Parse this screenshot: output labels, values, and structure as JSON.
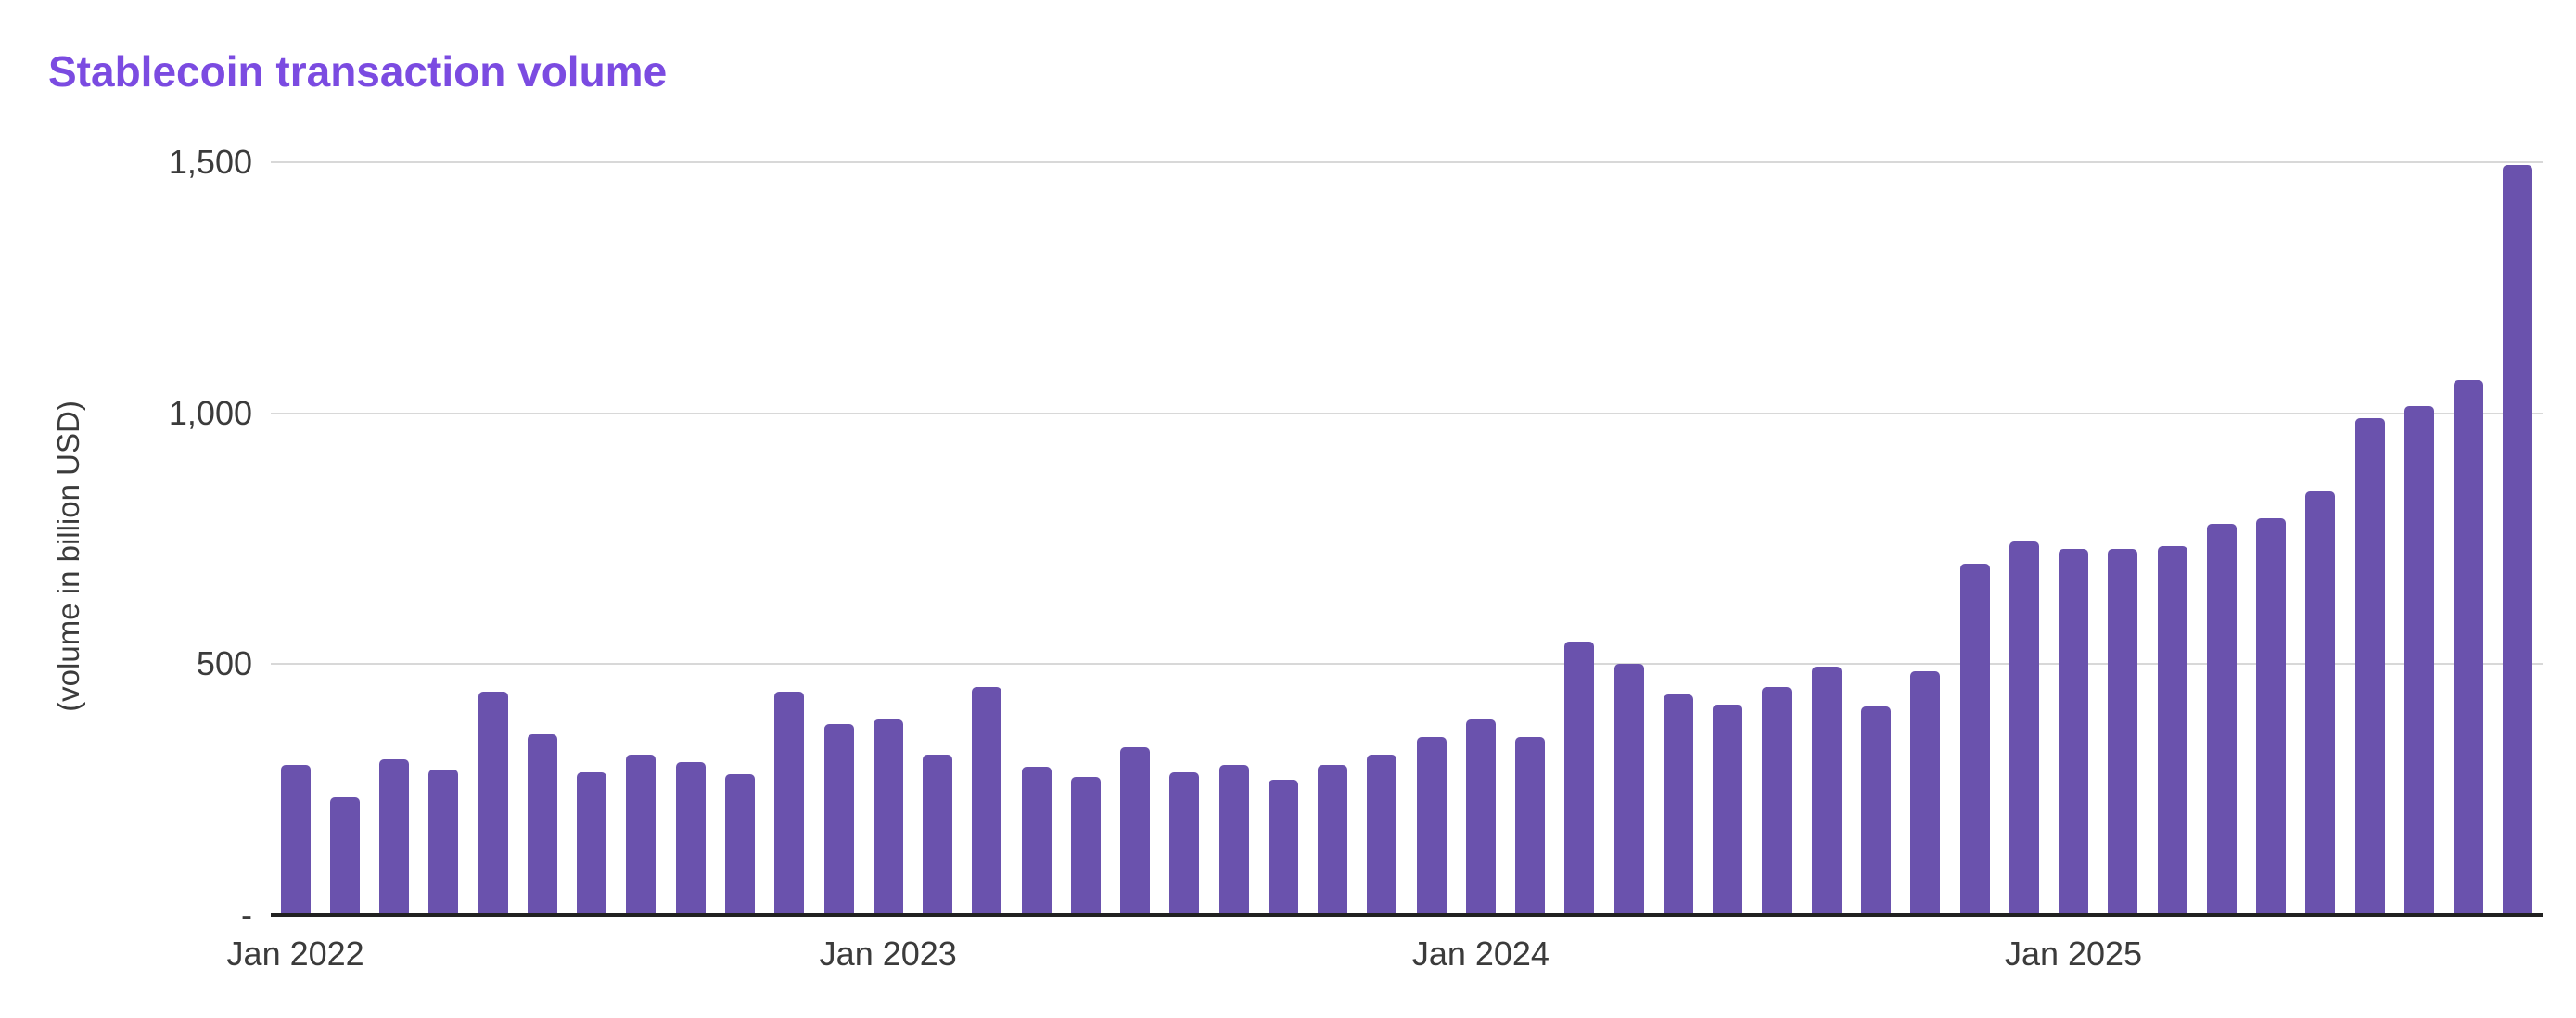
{
  "chart_data": {
    "type": "bar",
    "title": "Stablecoin transaction volume",
    "xlabel": "",
    "ylabel": "(volume in billion USD)",
    "ylim": [
      0,
      1500
    ],
    "grid": true,
    "legend": false,
    "categories": [
      "Jan 2022",
      "Feb 2022",
      "Mar 2022",
      "Apr 2022",
      "May 2022",
      "Jun 2022",
      "Jul 2022",
      "Aug 2022",
      "Sep 2022",
      "Oct 2022",
      "Nov 2022",
      "Dec 2022",
      "Jan 2023",
      "Feb 2023",
      "Mar 2023",
      "Apr 2023",
      "May 2023",
      "Jun 2023",
      "Jul 2023",
      "Aug 2023",
      "Sep 2023",
      "Oct 2023",
      "Nov 2023",
      "Dec 2023",
      "Jan 2024",
      "Feb 2024",
      "Mar 2024",
      "Apr 2024",
      "May 2024",
      "Jun 2024",
      "Jul 2024",
      "Aug 2024",
      "Sep 2024",
      "Oct 2024",
      "Nov 2024",
      "Dec 2024",
      "Jan 2025",
      "Feb 2025",
      "Mar 2025",
      "Apr 2025",
      "May 2025",
      "Jun 2025",
      "Jul 2025",
      "Aug 2025",
      "Sep 2025",
      "Oct 2025"
    ],
    "values": [
      300,
      235,
      310,
      290,
      445,
      360,
      285,
      320,
      305,
      280,
      445,
      380,
      390,
      320,
      455,
      295,
      275,
      335,
      285,
      300,
      270,
      300,
      320,
      355,
      390,
      355,
      545,
      500,
      440,
      420,
      455,
      495,
      415,
      485,
      700,
      745,
      730,
      730,
      735,
      780,
      790,
      845,
      990,
      1015,
      1065,
      1495
    ],
    "yticks": [
      {
        "label": "1,500",
        "value": 1500
      },
      {
        "label": "1,000",
        "value": 1000
      },
      {
        "label": "500",
        "value": 500
      },
      {
        "label": "-",
        "value": 0
      }
    ],
    "xticks": [
      {
        "label": "Jan 2022",
        "month_index": 0
      },
      {
        "label": "Jan 2023",
        "month_index": 12
      },
      {
        "label": "Jan 2024",
        "month_index": 24
      },
      {
        "label": "Jan 2025",
        "month_index": 36
      }
    ],
    "colors": {
      "bar": "#6A52AD",
      "title": "#7B4BE1",
      "gridline": "#D8D8D8",
      "axis_line": "#212121",
      "tick_text": "#3B3B3B"
    }
  }
}
